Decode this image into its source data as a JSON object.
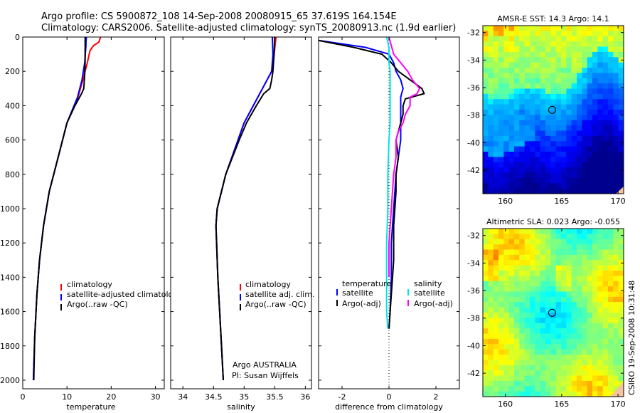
{
  "title_line1": "Argo profile: CS 5900872_108 14-Sep-2008 20080915_65 37.619S 164.154E",
  "title_line2": "Climatology: CARS2006. Satellite-adjusted climatology: synTS_20080913.nc (1.9d earlier)",
  "credit": "CSIRO 19-Sep-2008 10:31:48",
  "colors": {
    "climatology": "#ff0000",
    "satellite": "#0000ff",
    "argo": "#000000",
    "salinity_sat": "#00e5e5",
    "salinity_argo": "#ff00ff"
  },
  "chart_data": [
    {
      "type": "line",
      "xlabel": "temperature",
      "xlim": [
        0,
        32
      ],
      "ylim": [
        2050,
        0
      ],
      "xticks": [
        0,
        10,
        20,
        30
      ],
      "yticks": [
        0,
        200,
        400,
        600,
        800,
        1000,
        1200,
        1400,
        1600,
        1800,
        2000
      ],
      "legend": [
        "climatology",
        "satellite-adjusted climatology",
        "Argo(..raw -QC)"
      ],
      "series": [
        {
          "name": "climatology",
          "y": [
            0,
            30,
            50,
            80,
            150,
            250,
            350,
            500,
            700,
            900,
            1100,
            1300,
            1500,
            1750,
            2000
          ],
          "x": [
            17.6,
            17.2,
            16.0,
            15.2,
            14.6,
            13.6,
            12.5,
            10.0,
            8.0,
            6.0,
            4.7,
            3.8,
            3.2,
            2.7,
            2.4
          ]
        },
        {
          "name": "satellite-adjusted climatology",
          "y": [
            0,
            30,
            50,
            80,
            150,
            250,
            350,
            500,
            700,
            900,
            1100,
            1300,
            1500,
            1750,
            2000
          ],
          "x": [
            14.4,
            14.3,
            14.3,
            14.2,
            14.0,
            13.4,
            12.4,
            10.0,
            8.0,
            6.0,
            4.7,
            3.8,
            3.2,
            2.7,
            2.4
          ]
        },
        {
          "name": "Argo(..raw -QC)",
          "y": [
            0,
            30,
            80,
            150,
            220,
            300,
            330,
            400,
            500,
            700,
            900,
            1100,
            1300,
            1500,
            1750,
            2000
          ],
          "x": [
            14.1,
            14.1,
            14.1,
            14.1,
            14.0,
            13.8,
            13.3,
            11.8,
            10.0,
            8.0,
            6.0,
            4.7,
            3.8,
            3.2,
            2.7,
            2.5
          ]
        }
      ]
    },
    {
      "type": "line",
      "xlabel": "salinity",
      "xlim": [
        33.8,
        36.1
      ],
      "ylim": [
        2050,
        0
      ],
      "xticks": [
        34,
        34.5,
        35,
        35.5,
        36
      ],
      "yticks": [
        0,
        200,
        400,
        600,
        800,
        1000,
        1200,
        1400,
        1600,
        1800,
        2000
      ],
      "legend": [
        "climatology",
        "satellite adj. clim.",
        "Argo(..raw -QC)"
      ],
      "annotation": [
        "Argo AUSTRALIA",
        "PI: Susan Wijffels"
      ],
      "series": [
        {
          "name": "climatology",
          "y": [
            0,
            100,
            200,
            300,
            400,
            500,
            600,
            800,
            1000,
            1100,
            1200,
            1400,
            1600,
            1800,
            2000
          ],
          "x": [
            35.52,
            35.49,
            35.45,
            35.3,
            35.15,
            35.0,
            34.9,
            34.7,
            34.56,
            34.54,
            34.55,
            34.57,
            34.6,
            34.63,
            34.66
          ]
        },
        {
          "name": "satellite adj. clim.",
          "y": [
            0,
            100,
            200,
            300,
            400,
            500,
            600,
            800,
            1000,
            1100,
            1200,
            1400,
            1600,
            1800,
            2000
          ],
          "x": [
            35.46,
            35.47,
            35.45,
            35.3,
            35.15,
            35.0,
            34.9,
            34.7,
            34.56,
            34.54,
            34.55,
            34.57,
            34.6,
            34.63,
            34.66
          ]
        },
        {
          "name": "Argo(..raw -QC)",
          "y": [
            0,
            100,
            200,
            250,
            300,
            330,
            400,
            500,
            600,
            800,
            1000,
            1100,
            1200,
            1400,
            1600,
            1800,
            2000
          ],
          "x": [
            35.5,
            35.49,
            35.47,
            35.45,
            35.42,
            35.32,
            35.2,
            35.04,
            34.92,
            34.7,
            34.56,
            34.54,
            34.55,
            34.57,
            34.6,
            34.63,
            34.66
          ]
        }
      ]
    },
    {
      "type": "line",
      "xlabel": "difference from climatology",
      "xlim": [
        -3,
        3
      ],
      "ylim": [
        2050,
        0
      ],
      "xticks": [
        -2,
        0,
        2
      ],
      "yticks": [
        0,
        200,
        400,
        600,
        800,
        1000,
        1200,
        1400,
        1600,
        1800,
        2000
      ],
      "legend_headers": [
        "temperature",
        "salinity"
      ],
      "legend": [
        "satellite",
        "Argo(-adj)",
        "satellite",
        "Argo(-adj)"
      ],
      "series": [
        {
          "name": "temperature satellite",
          "y": [
            20,
            60,
            100,
            150,
            200,
            250,
            300,
            350,
            400,
            500,
            600,
            700,
            800,
            1000,
            1200,
            1400,
            1600,
            1700
          ],
          "x": [
            -3.0,
            -1.0,
            0.0,
            0.2,
            0.3,
            0.5,
            0.6,
            0.5,
            0.5,
            0.5,
            0.5,
            0.4,
            0.3,
            0.2,
            0.1,
            0.1,
            0.05,
            0.0
          ]
        },
        {
          "name": "temperature Argo(-adj)",
          "y": [
            20,
            60,
            100,
            150,
            200,
            250,
            300,
            330,
            360,
            400,
            450,
            500,
            600,
            700,
            800,
            900,
            1000,
            1100,
            1200,
            1300,
            1400,
            1500,
            1600,
            1700
          ],
          "x": [
            -3.0,
            -1.5,
            -0.3,
            0.1,
            0.4,
            0.9,
            1.4,
            1.5,
            0.7,
            0.6,
            0.6,
            0.5,
            0.3,
            0.4,
            0.3,
            0.3,
            0.25,
            0.2,
            0.2,
            0.2,
            0.15,
            0.1,
            0.05,
            0.0
          ]
        },
        {
          "name": "salinity satellite",
          "y": [
            0,
            60,
            150,
            200,
            300,
            400,
            500,
            600,
            800,
            1000,
            1200,
            1400,
            1600,
            1700
          ],
          "x": [
            -0.1,
            0.0,
            0.0,
            0.05,
            0.05,
            0.05,
            0.05,
            0.0,
            -0.05,
            -0.05,
            -0.1,
            -0.1,
            -0.1,
            -0.05
          ]
        },
        {
          "name": "salinity Argo(-adj)",
          "y": [
            0,
            100,
            150,
            200,
            250,
            300,
            330,
            350,
            400,
            450,
            500,
            550,
            600,
            700,
            800,
            1000,
            1200,
            1400
          ],
          "x": [
            0.0,
            0.2,
            0.5,
            0.8,
            1.0,
            1.3,
            1.2,
            0.9,
            0.9,
            0.7,
            0.6,
            0.4,
            0.3,
            0.3,
            0.2,
            0.1,
            0.0,
            0.0
          ]
        }
      ]
    },
    {
      "type": "heatmap",
      "title": "AMSR-E SST: 14.3 Argo: 14.1",
      "xlim": [
        158,
        170.5
      ],
      "ylim": [
        -43.7,
        -31.5
      ],
      "xticks": [
        160,
        165,
        170
      ],
      "yticks": [
        -32,
        -34,
        -36,
        -38,
        -40,
        -42
      ],
      "marker": {
        "x": 164.154,
        "y": -37.619
      }
    },
    {
      "type": "heatmap",
      "title": "Altimetric SLA: 0.023 Argo: -0.055",
      "xlim": [
        158,
        170.5
      ],
      "ylim": [
        -43.7,
        -31.5
      ],
      "xticks": [
        160,
        165,
        170
      ],
      "yticks": [
        -32,
        -34,
        -36,
        -38,
        -40,
        -42
      ],
      "marker": {
        "x": 164.154,
        "y": -37.619
      }
    }
  ]
}
